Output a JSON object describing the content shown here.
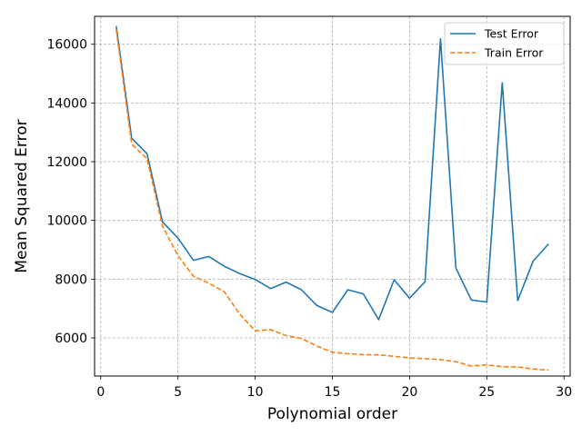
{
  "chart_data": {
    "type": "line",
    "title": "",
    "xlabel": "Polynomial order",
    "ylabel": "Mean Squared Error",
    "xlim": [
      -0.4,
      30.4
    ],
    "ylim": [
      4700,
      16950
    ],
    "xticks": [
      0,
      5,
      10,
      15,
      20,
      25,
      30
    ],
    "yticks": [
      6000,
      8000,
      10000,
      12000,
      14000,
      16000
    ],
    "grid": true,
    "legend_position": "top-right",
    "x": [
      1,
      2,
      3,
      4,
      5,
      6,
      7,
      8,
      9,
      10,
      11,
      12,
      13,
      14,
      15,
      16,
      17,
      18,
      19,
      20,
      21,
      22,
      23,
      24,
      25,
      26,
      27,
      28,
      29
    ],
    "series": [
      {
        "name": "Test Error",
        "color": "#1f77b4",
        "style": "solid",
        "values": [
          16620,
          12800,
          12270,
          9950,
          9400,
          8640,
          8770,
          8440,
          8190,
          7990,
          7680,
          7900,
          7640,
          7100,
          6870,
          7640,
          7500,
          6620,
          7980,
          7350,
          7910,
          16190,
          8380,
          7290,
          7220,
          14690,
          7270,
          8610,
          9200
        ]
      },
      {
        "name": "Train Error",
        "color": "#ff7f0e",
        "style": "dashed",
        "values": [
          16500,
          12600,
          12100,
          9800,
          8800,
          8100,
          7860,
          7570,
          6810,
          6240,
          6280,
          6080,
          5980,
          5720,
          5510,
          5460,
          5430,
          5420,
          5370,
          5320,
          5290,
          5260,
          5190,
          5040,
          5080,
          5020,
          5010,
          4940,
          4900
        ]
      }
    ]
  }
}
